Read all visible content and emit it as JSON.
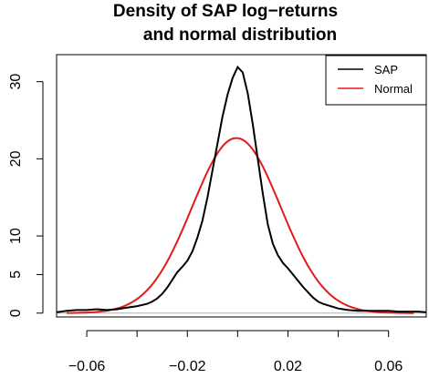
{
  "chart_data": {
    "type": "line",
    "title_lines": [
      "Density of SAP log−returns",
      "and normal distribution"
    ],
    "xlabel": "",
    "ylabel": "",
    "xlim": [
      -0.072,
      0.075
    ],
    "ylim": [
      -0.5,
      33.5
    ],
    "x_ticks": [
      -0.06,
      -0.04,
      -0.02,
      0.0,
      0.02,
      0.04,
      0.06
    ],
    "x_tick_labels": [
      "−0.06",
      "",
      "−0.02",
      "",
      "0.02",
      "",
      "0.06"
    ],
    "y_ticks": [
      0,
      5,
      10,
      20,
      30
    ],
    "y_tick_labels": [
      "0",
      "5",
      "10",
      "20",
      "30"
    ],
    "baseline_y": 0,
    "legend": {
      "position": "top-right",
      "entries": [
        "SAP",
        "Normal"
      ]
    },
    "series": [
      {
        "name": "SAP",
        "color": "#000000",
        "x": [
          -0.072,
          -0.068,
          -0.064,
          -0.06,
          -0.056,
          -0.052,
          -0.048,
          -0.044,
          -0.04,
          -0.036,
          -0.034,
          -0.032,
          -0.03,
          -0.028,
          -0.026,
          -0.024,
          -0.022,
          -0.02,
          -0.018,
          -0.016,
          -0.014,
          -0.012,
          -0.01,
          -0.008,
          -0.006,
          -0.004,
          -0.002,
          0.0,
          0.002,
          0.004,
          0.006,
          0.008,
          0.01,
          0.012,
          0.014,
          0.016,
          0.018,
          0.02,
          0.022,
          0.024,
          0.026,
          0.028,
          0.03,
          0.032,
          0.034,
          0.036,
          0.04,
          0.044,
          0.048,
          0.052,
          0.056,
          0.06,
          0.064,
          0.068,
          0.072,
          0.075
        ],
        "y": [
          0.1,
          0.3,
          0.4,
          0.4,
          0.5,
          0.4,
          0.5,
          0.7,
          0.9,
          1.2,
          1.5,
          1.9,
          2.5,
          3.3,
          4.3,
          5.3,
          6.0,
          6.8,
          8.0,
          9.8,
          12.0,
          15.0,
          18.5,
          22.0,
          25.5,
          28.3,
          30.5,
          31.9,
          31.2,
          28.5,
          24.5,
          20.0,
          15.5,
          11.5,
          9.0,
          7.5,
          6.5,
          5.8,
          5.0,
          4.2,
          3.4,
          2.7,
          2.0,
          1.5,
          1.2,
          1.0,
          0.6,
          0.4,
          0.3,
          0.3,
          0.3,
          0.3,
          0.2,
          0.2,
          0.2,
          0.1
        ]
      },
      {
        "name": "Normal",
        "color": "#e41a1c",
        "mean": -0.0005,
        "sd": 0.0176,
        "x_range": [
          -0.068,
          0.07
        ],
        "peak": 22.7
      }
    ]
  }
}
